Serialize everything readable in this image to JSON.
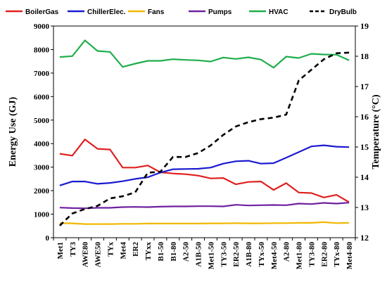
{
  "chart_data": {
    "type": "line",
    "ylabel": "Energy Use (GJ)",
    "y2label": "Temperature (°C)",
    "ylim": [
      0,
      9000
    ],
    "y2lim": [
      12,
      19
    ],
    "yticks": [
      "0",
      "1000",
      "2000",
      "3000",
      "4000",
      "5000",
      "6000",
      "7000",
      "8000",
      "9000"
    ],
    "y2ticks": [
      "12",
      "13",
      "14",
      "15",
      "16",
      "17",
      "18",
      "19"
    ],
    "legend_position": "top",
    "grid": false,
    "categories": [
      "Met1",
      "TY3",
      "AWE80",
      "AWE50",
      "TYx",
      "Met4",
      "ER2",
      "TYxx",
      "B1-50",
      "B1-80",
      "A2-50",
      "A1B-50",
      "Met1-50",
      "TY3-50",
      "ER2-50",
      "A1B-80",
      "TYx-50",
      "Met4-50",
      "A2-80",
      "Met1-80",
      "TY3-80",
      "ER2-80",
      "TYx-80",
      "Met4-80"
    ],
    "series": [
      {
        "name": "BoilerGas",
        "color": "#e02020",
        "axis": "left",
        "dash": false,
        "values": [
          3570,
          3490,
          4180,
          3780,
          3750,
          2980,
          2980,
          3070,
          2780,
          2730,
          2700,
          2640,
          2520,
          2540,
          2270,
          2370,
          2390,
          2030,
          2320,
          1920,
          1900,
          1710,
          1820,
          1510
        ]
      },
      {
        "name": "ChillerElec.",
        "color": "#1a1ad0",
        "axis": "left",
        "dash": false,
        "values": [
          2220,
          2390,
          2390,
          2290,
          2330,
          2400,
          2500,
          2570,
          2770,
          2910,
          2920,
          2930,
          2980,
          3150,
          3250,
          3270,
          3150,
          3170,
          3400,
          3640,
          3880,
          3930,
          3870,
          3850
        ]
      },
      {
        "name": "Fans",
        "color": "#f0b800",
        "axis": "left",
        "dash": false,
        "values": [
          620,
          610,
          580,
          580,
          580,
          590,
          590,
          600,
          600,
          600,
          600,
          600,
          610,
          610,
          620,
          610,
          610,
          620,
          620,
          630,
          630,
          660,
          620,
          630
        ]
      },
      {
        "name": "Pumps",
        "color": "#7020a0",
        "axis": "left",
        "dash": false,
        "values": [
          1280,
          1260,
          1250,
          1270,
          1270,
          1300,
          1310,
          1300,
          1320,
          1330,
          1330,
          1340,
          1340,
          1330,
          1400,
          1370,
          1380,
          1390,
          1380,
          1450,
          1430,
          1480,
          1450,
          1490
        ]
      },
      {
        "name": "HVAC",
        "color": "#1fae4c",
        "axis": "left",
        "dash": false,
        "values": [
          7680,
          7720,
          8390,
          7940,
          7900,
          7260,
          7400,
          7520,
          7520,
          7590,
          7560,
          7540,
          7490,
          7660,
          7600,
          7670,
          7570,
          7230,
          7700,
          7640,
          7820,
          7790,
          7780,
          7540
        ]
      },
      {
        "name": "DryBulb",
        "color": "#000000",
        "axis": "right",
        "dash": true,
        "values": [
          12.4,
          12.8,
          12.95,
          13.05,
          13.3,
          13.37,
          13.5,
          14.15,
          14.18,
          14.67,
          14.67,
          14.8,
          15.05,
          15.4,
          15.68,
          15.82,
          15.92,
          15.97,
          16.07,
          17.2,
          17.55,
          17.9,
          18.1,
          18.12
        ]
      }
    ]
  }
}
